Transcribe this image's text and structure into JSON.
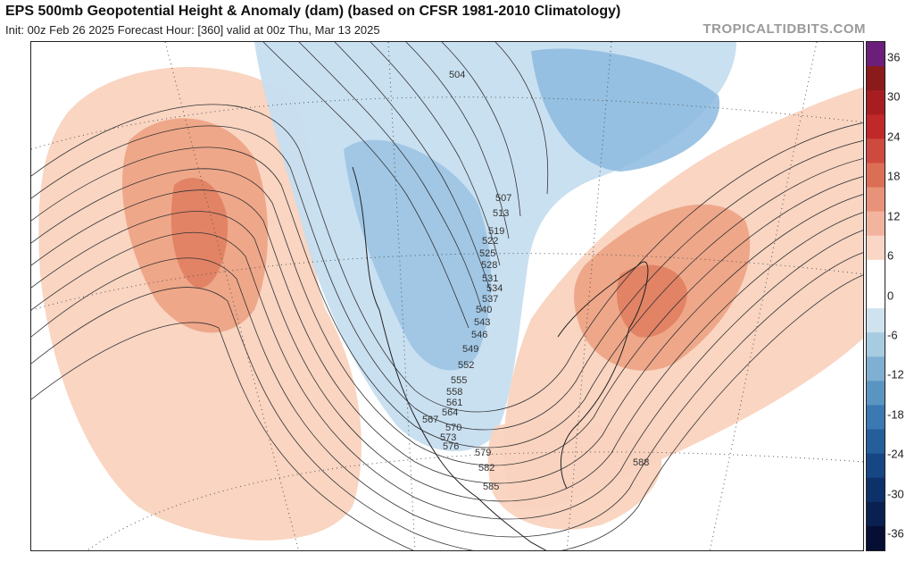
{
  "header": {
    "title": "EPS 500mb Geopotential Height & Anomaly (dam) (based on CFSR 1981-2010 Climatology)",
    "subtitle": "Init: 00z Feb 26 2025   Forecast Hour: [360]   valid at 00z Thu, Mar 13 2025",
    "brand": "TROPICALTIDBITS.COM"
  },
  "colorbar": {
    "labels": [
      "36",
      "30",
      "24",
      "18",
      "12",
      "6",
      "0",
      "-6",
      "-12",
      "-18",
      "-24",
      "-30",
      "-36"
    ],
    "colors": [
      "#6b1e7a",
      "#8b1a1a",
      "#a81d22",
      "#c0282a",
      "#cf4a3e",
      "#dc6e55",
      "#e8927a",
      "#f2b49e",
      "#f9d6c6",
      "#ffffff",
      "#ffffff",
      "#cfe3ef",
      "#a7cbe0",
      "#7fb0d1",
      "#5a95c2",
      "#3a79b1",
      "#245f9c",
      "#164683",
      "#0d3169",
      "#0a2050",
      "#060f33"
    ]
  },
  "map": {
    "contour_labels": [
      "504",
      "507",
      "513",
      "519",
      "522",
      "525",
      "528",
      "531",
      "534",
      "537",
      "540",
      "543",
      "546",
      "549",
      "552",
      "555",
      "558",
      "561",
      "564",
      "567",
      "570",
      "573",
      "576",
      "579",
      "582",
      "585",
      "588"
    ]
  }
}
